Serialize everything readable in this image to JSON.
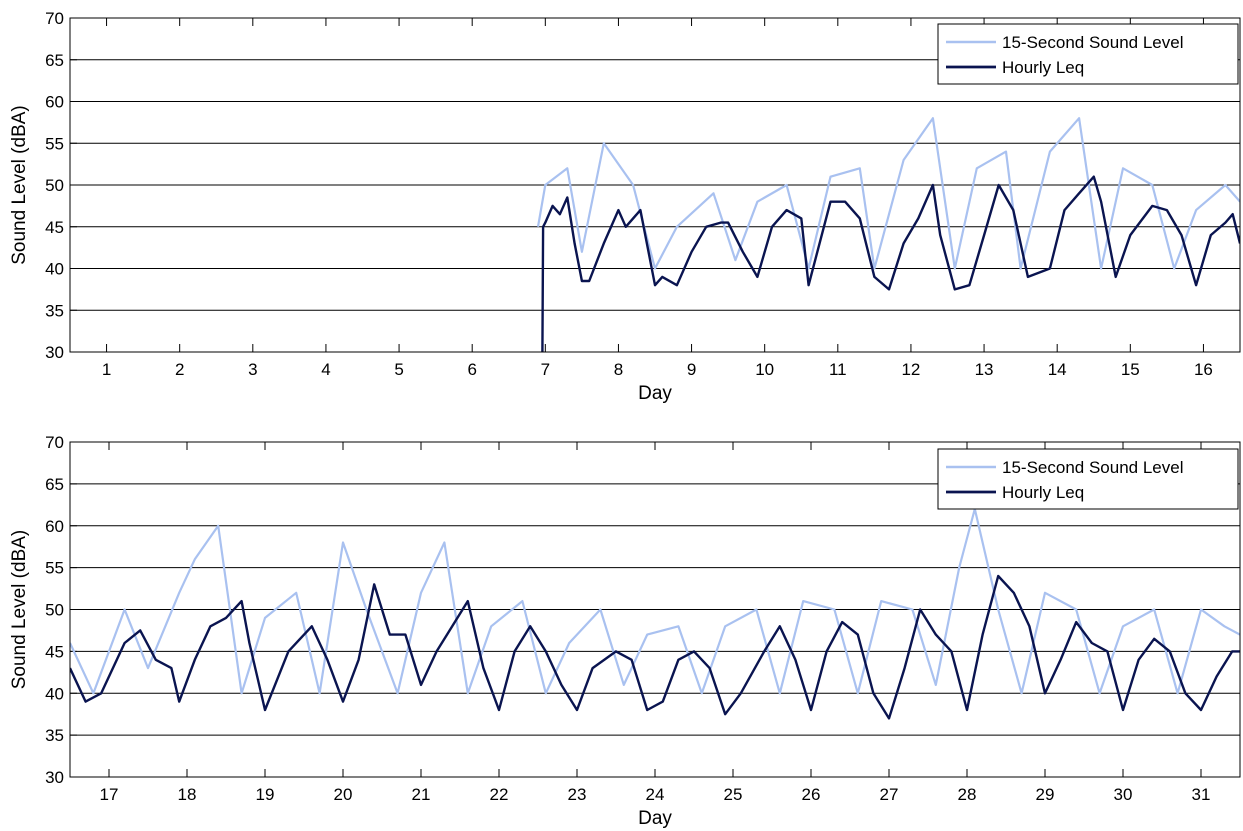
{
  "chart_data": [
    {
      "type": "line",
      "xlabel": "Day",
      "ylabel": "Sound Level (dBA)",
      "ylim": [
        30,
        70
      ],
      "yticks": [
        "30",
        "35",
        "40",
        "45",
        "50",
        "55",
        "60",
        "65",
        "70"
      ],
      "xlim": [
        0.5,
        16.5
      ],
      "xticks": [
        "1",
        "2",
        "3",
        "4",
        "5",
        "6",
        "7",
        "8",
        "9",
        "10",
        "11",
        "12",
        "13",
        "14",
        "15",
        "16"
      ],
      "grid": "horizontal",
      "legend_position": "top-right",
      "colors": {
        "raw": "#a9c1f0",
        "hourly": "#0a1450"
      },
      "series": [
        {
          "name": "15-Second Sound Level",
          "x": [
            6.9,
            7.0,
            7.3,
            7.5,
            7.8,
            8.2,
            8.5,
            8.8,
            9.3,
            9.6,
            9.9,
            10.3,
            10.6,
            10.9,
            11.3,
            11.5,
            11.9,
            12.3,
            12.6,
            12.9,
            13.3,
            13.5,
            13.9,
            14.3,
            14.6,
            14.9,
            15.3,
            15.6,
            15.9,
            16.3,
            16.5
          ],
          "values": [
            45,
            50,
            52,
            42,
            55,
            50,
            40,
            45,
            49,
            41,
            48,
            50,
            40,
            51,
            52,
            40,
            53,
            58,
            40,
            52,
            54,
            40,
            54,
            58,
            40,
            52,
            50,
            40,
            47,
            50,
            48
          ]
        },
        {
          "name": "Hourly Leq",
          "x": [
            6.96,
            6.97,
            7.0,
            7.1,
            7.2,
            7.3,
            7.4,
            7.5,
            7.6,
            7.8,
            8.0,
            8.1,
            8.3,
            8.5,
            8.6,
            8.8,
            9.0,
            9.2,
            9.4,
            9.5,
            9.7,
            9.9,
            10.1,
            10.3,
            10.5,
            10.6,
            10.9,
            11.1,
            11.3,
            11.5,
            11.7,
            11.9,
            12.1,
            12.3,
            12.4,
            12.6,
            12.8,
            13.0,
            13.2,
            13.4,
            13.6,
            13.9,
            14.1,
            14.3,
            14.5,
            14.6,
            14.8,
            15.0,
            15.3,
            15.5,
            15.7,
            15.9,
            16.1,
            16.3,
            16.4,
            16.5
          ],
          "values": [
            30,
            45,
            45.5,
            47.5,
            46.5,
            48.5,
            43,
            38.5,
            38.5,
            43,
            47,
            45,
            47,
            38,
            39,
            38,
            42,
            45,
            45.5,
            45.5,
            42,
            39,
            45,
            47,
            46,
            38,
            48,
            48,
            46,
            39,
            37.5,
            43,
            46,
            50,
            44,
            37.5,
            38,
            44,
            50,
            47,
            39,
            40,
            47,
            49,
            51,
            48,
            39,
            44,
            47.5,
            47,
            44,
            38,
            44,
            45.5,
            46.5,
            43
          ]
        }
      ]
    },
    {
      "type": "line",
      "xlabel": "Day",
      "ylabel": "Sound Level (dBA)",
      "ylim": [
        30,
        70
      ],
      "yticks": [
        "30",
        "35",
        "40",
        "45",
        "50",
        "55",
        "60",
        "65",
        "70"
      ],
      "xlim": [
        16.5,
        31.5
      ],
      "xticks": [
        "17",
        "18",
        "19",
        "20",
        "21",
        "22",
        "23",
        "24",
        "25",
        "26",
        "27",
        "28",
        "29",
        "30",
        "31"
      ],
      "grid": "horizontal",
      "legend_position": "top-right",
      "colors": {
        "raw": "#a9c1f0",
        "hourly": "#0a1450"
      },
      "series": [
        {
          "name": "15-Second Sound Level",
          "x": [
            16.5,
            16.8,
            17.2,
            17.5,
            17.9,
            18.1,
            18.4,
            18.7,
            19.0,
            19.4,
            19.7,
            20.0,
            20.3,
            20.7,
            21.0,
            21.3,
            21.6,
            21.9,
            22.3,
            22.6,
            22.9,
            23.3,
            23.6,
            23.9,
            24.3,
            24.6,
            24.9,
            25.3,
            25.6,
            25.9,
            26.3,
            26.6,
            26.9,
            27.3,
            27.6,
            27.9,
            28.1,
            28.4,
            28.7,
            29.0,
            29.4,
            29.7,
            30.0,
            30.4,
            30.7,
            31.0,
            31.3,
            31.5
          ],
          "values": [
            46,
            40,
            50,
            43,
            52,
            56,
            60,
            40,
            49,
            52,
            40,
            58,
            50,
            40,
            52,
            58,
            40,
            48,
            51,
            40,
            46,
            50,
            41,
            47,
            48,
            40,
            48,
            50,
            40,
            51,
            50,
            40,
            51,
            50,
            41,
            55,
            62,
            50,
            40,
            52,
            50,
            40,
            48,
            50,
            40,
            50,
            48,
            47
          ]
        },
        {
          "name": "Hourly Leq",
          "x": [
            16.5,
            16.7,
            16.9,
            17.2,
            17.4,
            17.6,
            17.8,
            17.9,
            18.1,
            18.3,
            18.5,
            18.7,
            18.8,
            19.0,
            19.3,
            19.6,
            19.8,
            20.0,
            20.2,
            20.4,
            20.6,
            20.8,
            21.0,
            21.2,
            21.4,
            21.6,
            21.8,
            22.0,
            22.2,
            22.4,
            22.6,
            22.8,
            23.0,
            23.2,
            23.5,
            23.7,
            23.9,
            24.1,
            24.3,
            24.5,
            24.7,
            24.9,
            25.1,
            25.4,
            25.6,
            25.8,
            26.0,
            26.2,
            26.4,
            26.6,
            26.8,
            27.0,
            27.2,
            27.4,
            27.6,
            27.8,
            28.0,
            28.2,
            28.4,
            28.6,
            28.8,
            29.0,
            29.2,
            29.4,
            29.6,
            29.8,
            30.0,
            30.2,
            30.4,
            30.6,
            30.8,
            31.0,
            31.2,
            31.4,
            31.5
          ],
          "values": [
            43,
            39,
            40,
            46,
            47.5,
            44,
            43,
            39,
            44,
            48,
            49,
            51,
            46,
            38,
            45,
            48,
            44,
            39,
            44,
            53,
            47,
            47,
            41,
            45,
            48,
            51,
            43,
            38,
            45,
            48,
            45,
            41,
            38,
            43,
            45,
            44,
            38,
            39,
            44,
            45,
            43,
            37.5,
            40,
            45,
            48,
            44,
            38,
            45,
            48.5,
            47,
            40,
            37,
            43,
            50,
            47,
            45,
            38,
            47,
            54,
            52,
            48,
            40,
            44,
            48.5,
            46,
            45,
            38,
            44,
            46.5,
            45,
            40,
            38,
            42,
            45,
            45
          ]
        }
      ]
    }
  ]
}
